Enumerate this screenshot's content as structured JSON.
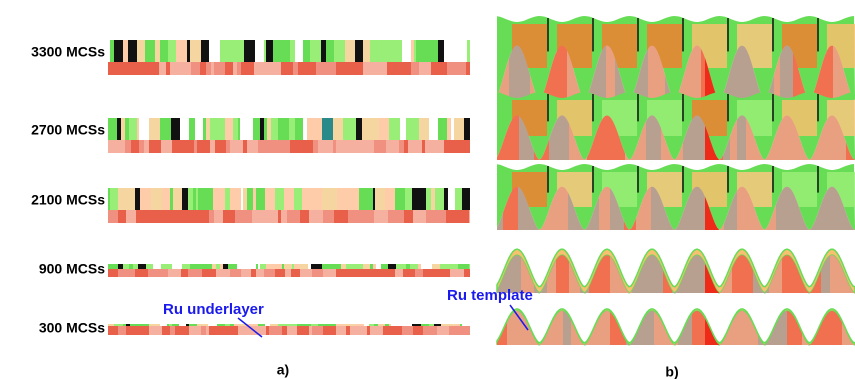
{
  "rows": [
    {
      "label": "3300 MCSs"
    },
    {
      "label": "2700 MCSs"
    },
    {
      "label": "2100 MCSs"
    },
    {
      "label": "900 MCSs"
    },
    {
      "label": "300 MCSs"
    }
  ],
  "annotations": {
    "left": "Ru underlayer",
    "right": "Ru template"
  },
  "panels": {
    "a": "a)",
    "b": "b)"
  }
}
